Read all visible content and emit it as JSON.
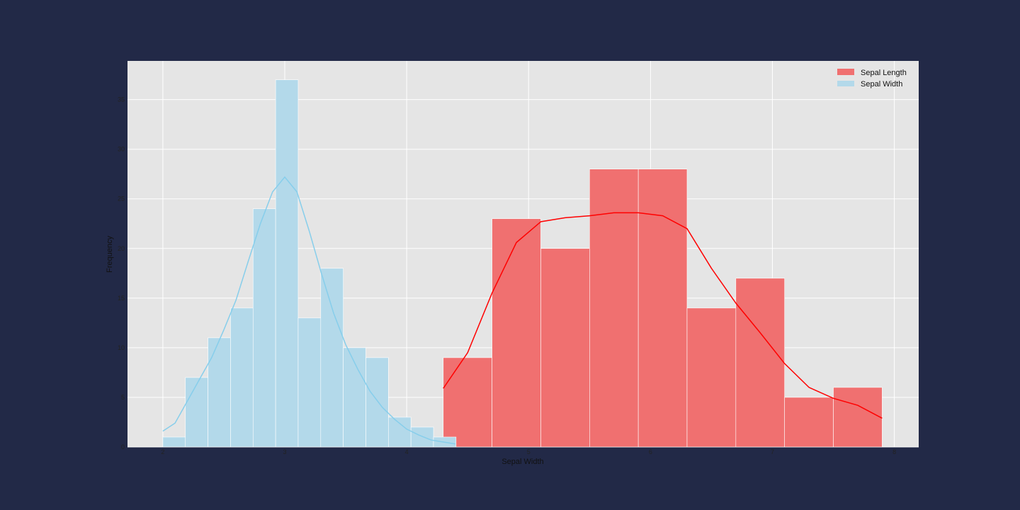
{
  "chart_data": {
    "type": "bar",
    "xlabel": "Sepal Width",
    "ylabel": "Frequency",
    "xlim": [
      1.71,
      8.2
    ],
    "ylim": [
      0,
      38.9
    ],
    "xticks": [
      "2",
      "3",
      "4",
      "5",
      "6",
      "7",
      "8"
    ],
    "yticks": [
      "0",
      "5",
      "10",
      "15",
      "20",
      "25",
      "30",
      "35"
    ],
    "grid": true,
    "legend_position": "top-right",
    "series": [
      {
        "name": "Sepal Length",
        "color": "#f07070",
        "kde_color": "#ff0000",
        "bin_edges": [
          4.3,
          4.7,
          5.1,
          5.5,
          5.9,
          6.3,
          6.7,
          7.1,
          7.5,
          7.9
        ],
        "values": [
          9,
          23,
          20,
          28,
          28,
          14,
          17,
          5,
          6
        ],
        "kde": [
          [
            4.3,
            5.9
          ],
          [
            4.5,
            9.5
          ],
          [
            4.7,
            15.5
          ],
          [
            4.9,
            20.6
          ],
          [
            5.1,
            22.7
          ],
          [
            5.3,
            23.1
          ],
          [
            5.5,
            23.3
          ],
          [
            5.7,
            23.6
          ],
          [
            5.9,
            23.6
          ],
          [
            6.1,
            23.3
          ],
          [
            6.3,
            22.0
          ],
          [
            6.5,
            18.0
          ],
          [
            6.7,
            14.5
          ],
          [
            6.9,
            11.5
          ],
          [
            7.1,
            8.4
          ],
          [
            7.3,
            6.0
          ],
          [
            7.5,
            4.9
          ],
          [
            7.7,
            4.2
          ],
          [
            7.9,
            2.9
          ]
        ]
      },
      {
        "name": "Sepal Width",
        "color": "#b3d9ea",
        "kde_color": "#87ceeb",
        "bin_edges": [
          2.0,
          2.185,
          2.37,
          2.555,
          2.74,
          2.925,
          3.11,
          3.295,
          3.48,
          3.665,
          3.85,
          4.035,
          4.22,
          4.405
        ],
        "values": [
          1,
          7,
          11,
          14,
          24,
          37,
          13,
          18,
          10,
          9,
          3,
          2,
          1
        ],
        "kde": [
          [
            2.0,
            1.6
          ],
          [
            2.1,
            2.4
          ],
          [
            2.2,
            4.6
          ],
          [
            2.3,
            6.8
          ],
          [
            2.4,
            9.0
          ],
          [
            2.5,
            11.8
          ],
          [
            2.6,
            14.8
          ],
          [
            2.7,
            18.7
          ],
          [
            2.8,
            22.5
          ],
          [
            2.9,
            25.7
          ],
          [
            3.0,
            27.2
          ],
          [
            3.1,
            25.7
          ],
          [
            3.2,
            21.8
          ],
          [
            3.3,
            17.5
          ],
          [
            3.4,
            13.5
          ],
          [
            3.5,
            10.3
          ],
          [
            3.6,
            7.8
          ],
          [
            3.7,
            5.6
          ],
          [
            3.8,
            4.0
          ],
          [
            3.9,
            2.8
          ],
          [
            4.0,
            1.8
          ],
          [
            4.1,
            1.2
          ],
          [
            4.2,
            0.7
          ],
          [
            4.3,
            0.5
          ],
          [
            4.4,
            0.3
          ]
        ]
      }
    ]
  }
}
